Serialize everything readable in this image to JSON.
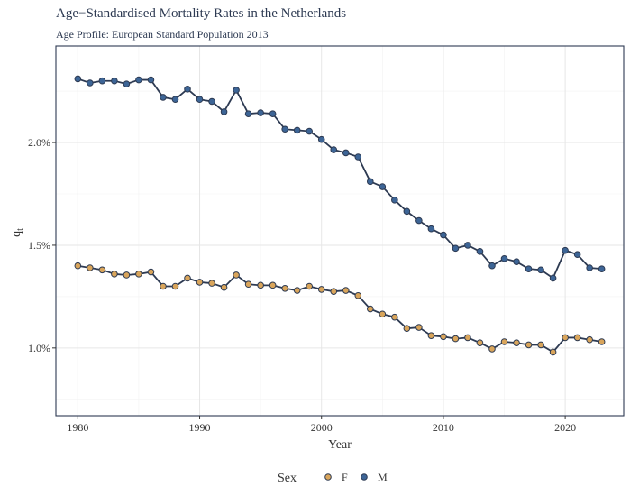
{
  "chart_data": {
    "type": "line",
    "title": "Age−Standardised Mortality Rates in the Netherlands",
    "subtitle": "Age Profile: European Standard Population 2013",
    "xlabel": "Year",
    "ylabel_base": "q",
    "ylabel_sub": "t",
    "xlim": [
      1978.2,
      2024.8
    ],
    "ylim": [
      0.0067,
      0.0247
    ],
    "x_ticks": [
      1980,
      1990,
      2000,
      2010,
      2020
    ],
    "y_ticks": [
      0.01,
      0.015,
      0.02
    ],
    "y_tick_labels": [
      "1.0%",
      "1.5%",
      "2.0%"
    ],
    "y_minor_ticks": [
      0.0075,
      0.0125,
      0.0175,
      0.0225
    ],
    "grid": true,
    "legend": {
      "title": "Sex",
      "position": "bottom"
    },
    "line_color": "#2d3a52",
    "x": [
      1980,
      1981,
      1982,
      1983,
      1984,
      1985,
      1986,
      1987,
      1988,
      1989,
      1990,
      1991,
      1992,
      1993,
      1994,
      1995,
      1996,
      1997,
      1998,
      1999,
      2000,
      2001,
      2002,
      2003,
      2004,
      2005,
      2006,
      2007,
      2008,
      2009,
      2010,
      2011,
      2012,
      2013,
      2014,
      2015,
      2016,
      2017,
      2018,
      2019,
      2020,
      2021,
      2022,
      2023
    ],
    "series": [
      {
        "name": "F",
        "color": "#d9a55b",
        "values": [
          0.014,
          0.0139,
          0.0138,
          0.0136,
          0.01355,
          0.0136,
          0.0137,
          0.013,
          0.013,
          0.0134,
          0.0132,
          0.01315,
          0.01295,
          0.01355,
          0.0131,
          0.01305,
          0.01305,
          0.0129,
          0.0128,
          0.013,
          0.01285,
          0.01275,
          0.0128,
          0.01255,
          0.0119,
          0.01165,
          0.0115,
          0.01095,
          0.011,
          0.0106,
          0.01055,
          0.01045,
          0.0105,
          0.01025,
          0.00995,
          0.0103,
          0.01025,
          0.01015,
          0.01015,
          0.0098,
          0.0105,
          0.0105,
          0.0104,
          0.0103
        ]
      },
      {
        "name": "M",
        "color": "#3d6596",
        "values": [
          0.0231,
          0.0229,
          0.023,
          0.023,
          0.02285,
          0.02305,
          0.02305,
          0.0222,
          0.0221,
          0.0226,
          0.0221,
          0.022,
          0.0215,
          0.02255,
          0.0214,
          0.02145,
          0.0214,
          0.02065,
          0.0206,
          0.02055,
          0.02015,
          0.01965,
          0.0195,
          0.0193,
          0.0181,
          0.01785,
          0.0172,
          0.01665,
          0.0162,
          0.0158,
          0.0155,
          0.01485,
          0.015,
          0.0147,
          0.014,
          0.01435,
          0.0142,
          0.01385,
          0.0138,
          0.0134,
          0.01475,
          0.01455,
          0.0139,
          0.01385
        ]
      }
    ]
  }
}
